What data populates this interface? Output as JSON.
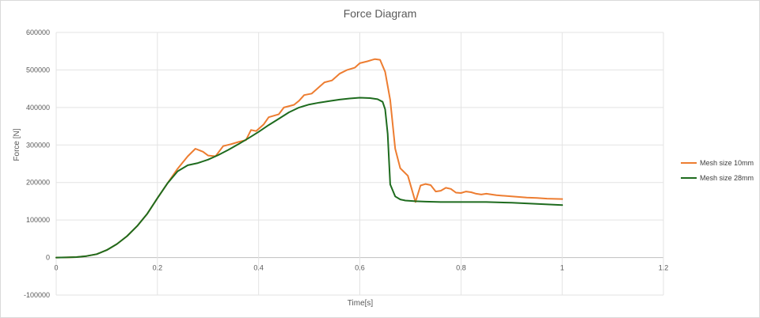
{
  "chart_data": {
    "type": "line",
    "title": "Force Diagram",
    "xlabel": "Time[s]",
    "ylabel": "Force [N]",
    "xlim": [
      0,
      1.2
    ],
    "ylim": [
      -100000,
      600000
    ],
    "x_ticks": [
      "0",
      "0.2",
      "0.4",
      "0.6",
      "0.8",
      "1",
      "1.2"
    ],
    "y_ticks": [
      "-100000",
      "0",
      "100000",
      "200000",
      "300000",
      "400000",
      "500000",
      "600000"
    ],
    "grid": true,
    "legend_position": "right",
    "series": [
      {
        "name": "Mesh size 10mm",
        "color": "#ED7D31",
        "points": [
          [
            0,
            0
          ],
          [
            0.02,
            300
          ],
          [
            0.04,
            1200
          ],
          [
            0.06,
            4000
          ],
          [
            0.08,
            9000
          ],
          [
            0.1,
            20000
          ],
          [
            0.12,
            36000
          ],
          [
            0.14,
            57000
          ],
          [
            0.16,
            84000
          ],
          [
            0.18,
            117000
          ],
          [
            0.2,
            158000
          ],
          [
            0.22,
            198000
          ],
          [
            0.24,
            237000
          ],
          [
            0.26,
            270000
          ],
          [
            0.275,
            290000
          ],
          [
            0.29,
            282000
          ],
          [
            0.3,
            272000
          ],
          [
            0.315,
            270000
          ],
          [
            0.33,
            297000
          ],
          [
            0.345,
            302000
          ],
          [
            0.36,
            308000
          ],
          [
            0.375,
            313000
          ],
          [
            0.385,
            340000
          ],
          [
            0.395,
            337000
          ],
          [
            0.41,
            355000
          ],
          [
            0.42,
            374000
          ],
          [
            0.44,
            382000
          ],
          [
            0.45,
            400000
          ],
          [
            0.47,
            407000
          ],
          [
            0.48,
            418000
          ],
          [
            0.49,
            433000
          ],
          [
            0.505,
            437000
          ],
          [
            0.52,
            455000
          ],
          [
            0.53,
            467000
          ],
          [
            0.545,
            472000
          ],
          [
            0.56,
            490000
          ],
          [
            0.575,
            500000
          ],
          [
            0.59,
            506000
          ],
          [
            0.6,
            518000
          ],
          [
            0.615,
            523000
          ],
          [
            0.625,
            527000
          ],
          [
            0.63,
            529000
          ],
          [
            0.64,
            527000
          ],
          [
            0.65,
            495000
          ],
          [
            0.66,
            420000
          ],
          [
            0.67,
            290000
          ],
          [
            0.68,
            238000
          ],
          [
            0.695,
            218000
          ],
          [
            0.71,
            148000
          ],
          [
            0.72,
            192000
          ],
          [
            0.73,
            196000
          ],
          [
            0.74,
            193000
          ],
          [
            0.75,
            176000
          ],
          [
            0.76,
            178000
          ],
          [
            0.77,
            186000
          ],
          [
            0.78,
            183000
          ],
          [
            0.79,
            173000
          ],
          [
            0.8,
            172000
          ],
          [
            0.81,
            176000
          ],
          [
            0.82,
            174000
          ],
          [
            0.83,
            170000
          ],
          [
            0.84,
            168000
          ],
          [
            0.85,
            170000
          ],
          [
            0.87,
            166000
          ],
          [
            0.9,
            163000
          ],
          [
            0.93,
            160000
          ],
          [
            0.95,
            159000
          ],
          [
            0.97,
            157000
          ],
          [
            1.0,
            156000
          ]
        ]
      },
      {
        "name": "Mesh size 28mm",
        "color": "#1E6B1E",
        "points": [
          [
            0,
            0
          ],
          [
            0.02,
            300
          ],
          [
            0.04,
            1200
          ],
          [
            0.06,
            4000
          ],
          [
            0.08,
            9000
          ],
          [
            0.1,
            20000
          ],
          [
            0.12,
            36000
          ],
          [
            0.14,
            57000
          ],
          [
            0.16,
            84000
          ],
          [
            0.18,
            117000
          ],
          [
            0.2,
            158000
          ],
          [
            0.22,
            198000
          ],
          [
            0.24,
            230000
          ],
          [
            0.26,
            246000
          ],
          [
            0.28,
            252000
          ],
          [
            0.3,
            261000
          ],
          [
            0.32,
            273000
          ],
          [
            0.34,
            287000
          ],
          [
            0.36,
            302000
          ],
          [
            0.38,
            318000
          ],
          [
            0.4,
            335000
          ],
          [
            0.42,
            353000
          ],
          [
            0.44,
            370000
          ],
          [
            0.46,
            387000
          ],
          [
            0.48,
            400000
          ],
          [
            0.5,
            408000
          ],
          [
            0.52,
            413000
          ],
          [
            0.54,
            417000
          ],
          [
            0.56,
            421000
          ],
          [
            0.58,
            424000
          ],
          [
            0.6,
            426000
          ],
          [
            0.62,
            425000
          ],
          [
            0.635,
            422000
          ],
          [
            0.645,
            415000
          ],
          [
            0.65,
            395000
          ],
          [
            0.655,
            330000
          ],
          [
            0.66,
            195000
          ],
          [
            0.67,
            163000
          ],
          [
            0.68,
            155000
          ],
          [
            0.69,
            152000
          ],
          [
            0.71,
            150000
          ],
          [
            0.73,
            149000
          ],
          [
            0.76,
            148000
          ],
          [
            0.8,
            148000
          ],
          [
            0.85,
            148000
          ],
          [
            0.9,
            146000
          ],
          [
            0.95,
            143000
          ],
          [
            1.0,
            140000
          ]
        ]
      }
    ]
  }
}
